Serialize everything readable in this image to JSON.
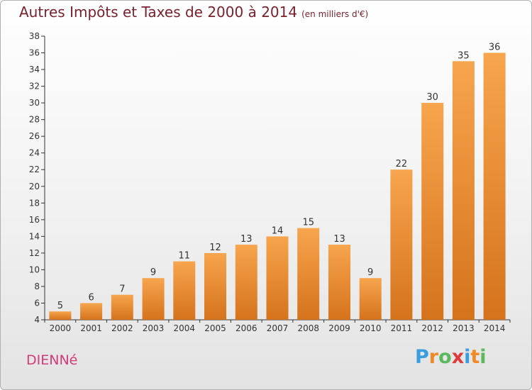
{
  "title": "Autres Impôts et Taxes de 2000 à 2014",
  "unit": "(en milliers d'€)",
  "commune": "DIENNé",
  "logo": "Proxiti",
  "colors": {
    "bar_light": "#f7a54e",
    "bar_dark": "#d5731c",
    "title": "#7a1f2b",
    "commune": "#d23a7a"
  },
  "chart_data": {
    "type": "bar",
    "title": "Autres Impôts et Taxes de 2000 à 2014",
    "categories": [
      "2000",
      "2001",
      "2002",
      "2003",
      "2004",
      "2005",
      "2006",
      "2007",
      "2008",
      "2009",
      "2010",
      "2011",
      "2012",
      "2013",
      "2014"
    ],
    "values": [
      5,
      6,
      7,
      9,
      11,
      12,
      13,
      14,
      15,
      13,
      9,
      22,
      30,
      35,
      36
    ],
    "ylim": [
      4,
      38
    ],
    "yticks": [
      4,
      6,
      8,
      10,
      12,
      14,
      16,
      18,
      20,
      22,
      24,
      26,
      28,
      30,
      32,
      34,
      36,
      38
    ],
    "grid": false,
    "legend": "none"
  }
}
